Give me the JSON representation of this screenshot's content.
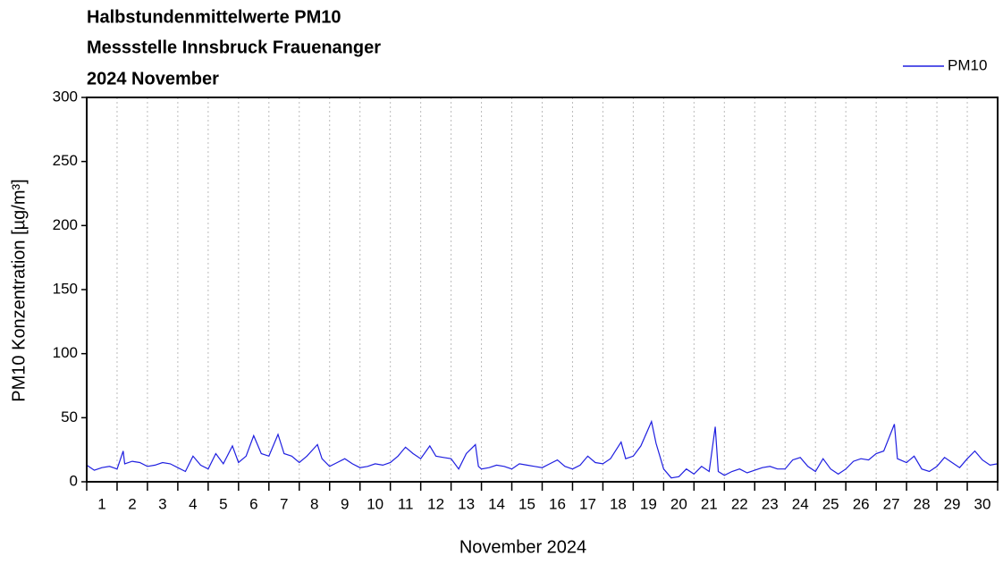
{
  "chart_data": {
    "type": "line",
    "title": "Halbstundenmittelwerte PM10",
    "subtitle": "Messstelle Innsbruck Frauenanger",
    "period": "2024 November",
    "ylabel": "PM10 Konzentration [µg/m³]",
    "xlabel": "November 2024",
    "xlim": [
      1,
      31
    ],
    "ylim": [
      0,
      300
    ],
    "yticks": [
      0,
      50,
      100,
      150,
      200,
      250,
      300
    ],
    "xticks": [
      1,
      2,
      3,
      4,
      5,
      6,
      7,
      8,
      9,
      10,
      11,
      12,
      13,
      14,
      15,
      16,
      17,
      18,
      19,
      20,
      21,
      22,
      23,
      24,
      25,
      26,
      27,
      28,
      29,
      30,
      31
    ],
    "x_labels": [
      1,
      2,
      3,
      4,
      5,
      6,
      7,
      8,
      9,
      10,
      11,
      12,
      13,
      14,
      15,
      16,
      17,
      18,
      19,
      20,
      21,
      22,
      23,
      24,
      25,
      26,
      27,
      28,
      29,
      30
    ],
    "grid": true,
    "legend": "top-right",
    "series": [
      {
        "name": "PM10",
        "color": "#1f1fe0",
        "x": [
          1,
          1.25,
          1.5,
          1.75,
          2,
          2.2,
          2.25,
          2.5,
          2.75,
          3,
          3.25,
          3.5,
          3.75,
          4,
          4.25,
          4.5,
          4.75,
          5,
          5.25,
          5.5,
          5.8,
          6,
          6.25,
          6.5,
          6.75,
          7,
          7.3,
          7.5,
          7.75,
          8,
          8.25,
          8.6,
          8.75,
          9,
          9.25,
          9.5,
          9.75,
          10,
          10.25,
          10.5,
          10.75,
          11,
          11.25,
          11.5,
          11.75,
          12,
          12.3,
          12.5,
          12.75,
          13,
          13.25,
          13.5,
          13.8,
          13.9,
          14,
          14.25,
          14.5,
          14.75,
          15,
          15.25,
          15.5,
          15.75,
          16,
          16.25,
          16.5,
          16.75,
          17,
          17.25,
          17.5,
          17.75,
          18,
          18.25,
          18.6,
          18.75,
          19,
          19.25,
          19.6,
          19.75,
          20,
          20.25,
          20.5,
          20.75,
          21,
          21.25,
          21.5,
          21.7,
          21.8,
          22,
          22.25,
          22.5,
          22.75,
          23,
          23.25,
          23.5,
          23.75,
          24,
          24.25,
          24.5,
          24.75,
          25,
          25.25,
          25.5,
          25.75,
          26,
          26.25,
          26.5,
          26.75,
          27,
          27.25,
          27.6,
          27.7,
          28,
          28.25,
          28.5,
          28.75,
          29,
          29.25,
          29.5,
          29.75,
          30,
          30.25,
          30.5,
          30.75,
          31
        ],
        "values": [
          13,
          9,
          11,
          12,
          10,
          24,
          14,
          16,
          15,
          12,
          13,
          15,
          14,
          11,
          8,
          20,
          13,
          10,
          22,
          14,
          28,
          15,
          20,
          36,
          22,
          20,
          37,
          22,
          20,
          15,
          20,
          29,
          18,
          12,
          15,
          18,
          14,
          11,
          12,
          14,
          13,
          15,
          20,
          27,
          22,
          18,
          28,
          20,
          19,
          18,
          10,
          22,
          29,
          12,
          10,
          11,
          13,
          12,
          10,
          14,
          13,
          12,
          11,
          14,
          17,
          12,
          10,
          13,
          20,
          15,
          14,
          18,
          31,
          18,
          20,
          28,
          47,
          30,
          10,
          3,
          4,
          10,
          6,
          12,
          8,
          43,
          8,
          5,
          8,
          10,
          7,
          9,
          11,
          12,
          10,
          10,
          17,
          19,
          12,
          8,
          18,
          10,
          6,
          10,
          16,
          18,
          17,
          22,
          24,
          45,
          18,
          15,
          20,
          10,
          8,
          12,
          19,
          15,
          11,
          18,
          24,
          17,
          13,
          14
        ]
      }
    ]
  }
}
